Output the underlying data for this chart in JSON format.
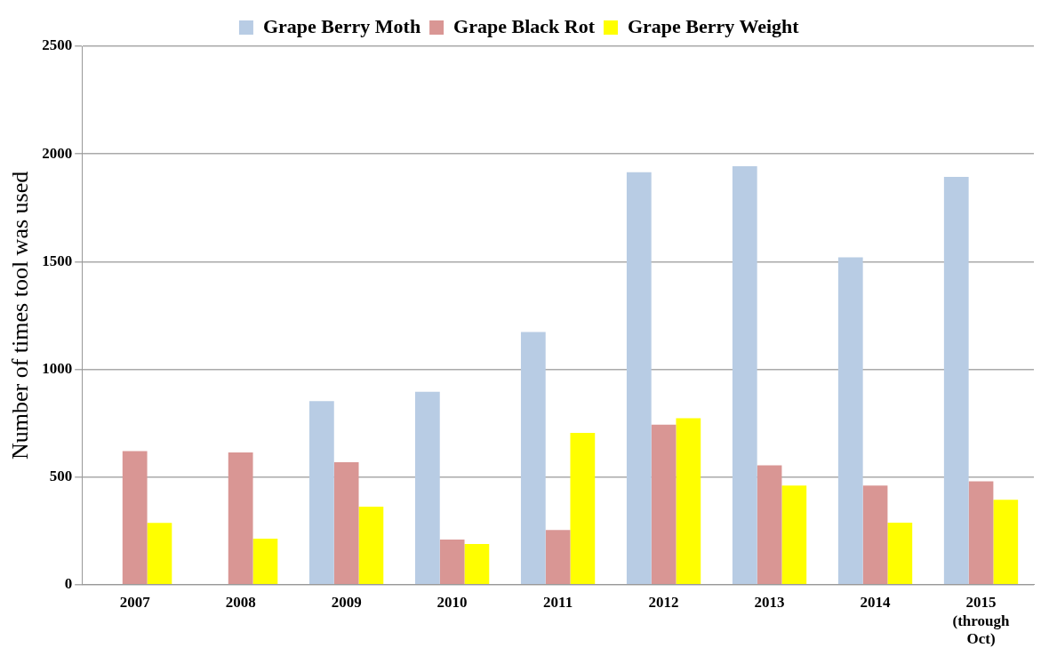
{
  "chart_data": {
    "type": "bar",
    "ylabel": "Number of times tool was used",
    "categories": [
      "2007",
      "2008",
      "2009",
      "2010",
      "2011",
      "2012",
      "2013",
      "2014",
      "2015\n(through\nOct)"
    ],
    "series": [
      {
        "name": "Grape Berry Moth",
        "color": "#b8cce4",
        "values": [
          null,
          null,
          852,
          896,
          1173,
          1915,
          1943,
          1520,
          1893
        ]
      },
      {
        "name": "Grape Black Rot",
        "color": "#d99694",
        "values": [
          620,
          614,
          569,
          210,
          254,
          743,
          554,
          460,
          480
        ]
      },
      {
        "name": "Grape Berry Weight",
        "color": "#ffff00",
        "values": [
          287,
          214,
          362,
          189,
          705,
          773,
          460,
          288,
          394
        ]
      }
    ],
    "ylim": [
      0,
      2500
    ],
    "yticks": [
      0,
      500,
      1000,
      1500,
      2000,
      2500
    ],
    "grid": "y",
    "legend": "top"
  }
}
